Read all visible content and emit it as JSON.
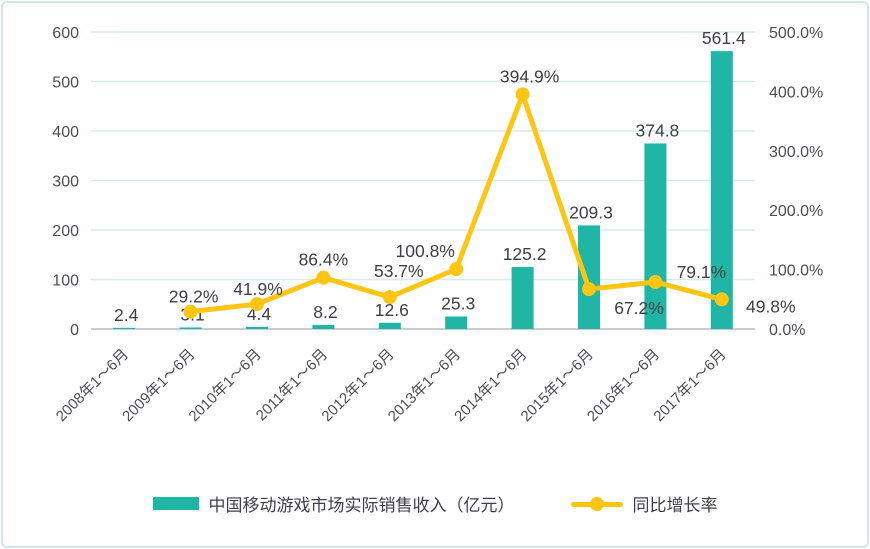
{
  "chart_data": {
    "type": "combo",
    "categories": [
      "2008年1～6月",
      "2009年1～6月",
      "2010年1～6月",
      "2011年1～6月",
      "2012年1～6月",
      "2013年1～6月",
      "2014年1～6月",
      "2015年1～6月",
      "2016年1～6月",
      "2017年1～6月"
    ],
    "series": [
      {
        "name": "中国移动游戏市场实际销售收入（亿元）",
        "type": "bar",
        "axis": "left",
        "color": "#1FB6A6",
        "values": [
          2.4,
          3.1,
          4.4,
          8.2,
          12.6,
          25.3,
          125.2,
          209.3,
          374.8,
          561.4
        ],
        "labels": [
          "2.4",
          "3.1",
          "4.4",
          "8.2",
          "12.6",
          "25.3",
          "125.2",
          "209.3",
          "374.8",
          "561.4"
        ]
      },
      {
        "name": "同比增长率",
        "type": "line",
        "axis": "right",
        "color": "#FFC513",
        "values": [
          null,
          29.2,
          41.9,
          86.4,
          53.7,
          100.8,
          394.9,
          67.2,
          79.1,
          49.8
        ],
        "labels": [
          null,
          "29.2%",
          "41.9%",
          "86.4%",
          "53.7%",
          "100.8%",
          "394.9%",
          "67.2%",
          "79.1%",
          "49.8%"
        ]
      }
    ],
    "left_axis": {
      "min": 0,
      "max": 600,
      "step": 100,
      "tick_labels": [
        "0",
        "100",
        "200",
        "300",
        "400",
        "500",
        "600"
      ]
    },
    "right_axis": {
      "min": 0,
      "max": 500,
      "step": 100,
      "tick_labels": [
        "0.0%",
        "100.0%",
        "200.0%",
        "300.0%",
        "400.0%",
        "500.0%"
      ]
    },
    "grid": true,
    "legend_position": "bottom",
    "title": ""
  },
  "colors": {
    "bar": "#1FB6A6",
    "line": "#FFC513",
    "grid": "#D9EAEC",
    "baseline": "#ADADAD",
    "tick_text": "#4D4D53",
    "label_text": "#3F3F46"
  }
}
